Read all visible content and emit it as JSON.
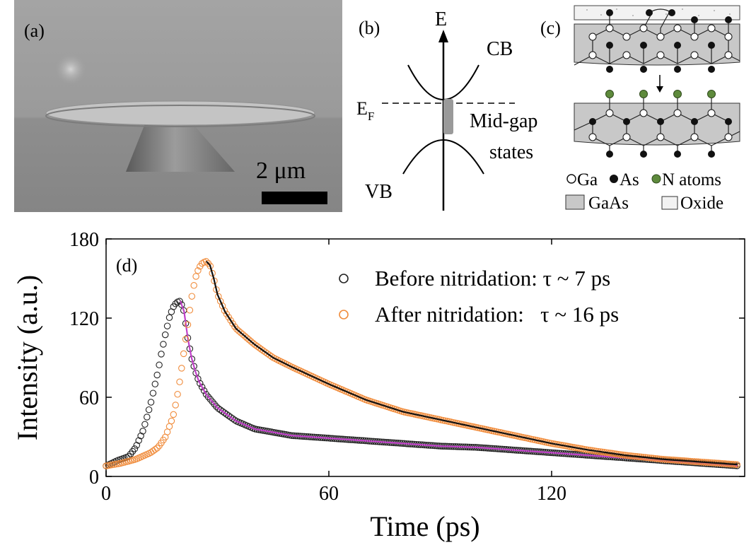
{
  "panel_a": {
    "label": "(a)",
    "scale_bar_label": "2 μm"
  },
  "panel_b": {
    "label": "(b)",
    "energy_axis": "E",
    "conduction_band": "CB",
    "valence_band": "VB",
    "fermi_level": "E",
    "fermi_subscript": "F",
    "midgap_line1": "Mid-gap",
    "midgap_line2": "states"
  },
  "panel_c": {
    "label": "(c)",
    "legend_ga": "Ga",
    "legend_as": "As",
    "legend_n": "N atoms",
    "legend_gaas": "GaAs",
    "legend_oxide": "Oxide",
    "colors": {
      "gaas_fill": "#c8c8c8",
      "oxide_fill": "#f2f2f2",
      "nitrogen": "#5e8a3c"
    }
  },
  "chart_data": {
    "type": "scatter",
    "panel_label": "(d)",
    "xlabel": "Time (ps)",
    "ylabel": "Intensity (a.u.)",
    "xlim": [
      0,
      172
    ],
    "ylim": [
      0,
      180
    ],
    "xticks": [
      "0",
      "60",
      "120"
    ],
    "yticks": [
      "0",
      "60",
      "120",
      "180"
    ],
    "legend_position": "top-right",
    "series": [
      {
        "name": "Before nitridation: τ ~ 7 ps",
        "color": "#222222",
        "fit_color": "#c040c8",
        "x": [
          0,
          3,
          6,
          8,
          10,
          12,
          14,
          15,
          16,
          17,
          18,
          19,
          20,
          21,
          22,
          23,
          24,
          25,
          27,
          30,
          35,
          40,
          50,
          60,
          70,
          80,
          90,
          100,
          110,
          120,
          130,
          140,
          150,
          160,
          170
        ],
        "y": [
          8,
          12,
          15,
          22,
          35,
          55,
          80,
          95,
          108,
          120,
          128,
          132,
          133,
          125,
          105,
          90,
          80,
          72,
          62,
          52,
          42,
          36,
          31,
          29,
          27,
          25,
          23,
          22,
          20,
          18,
          16,
          14,
          12,
          10,
          8
        ]
      },
      {
        "name": "After nitridation:   τ ~ 16 ps",
        "color": "#f08c3c",
        "fit_color": "#111111",
        "x": [
          0,
          4,
          8,
          12,
          14,
          16,
          18,
          19,
          20,
          21,
          22,
          23,
          24,
          25,
          26,
          27,
          28,
          29,
          30,
          32,
          35,
          40,
          45,
          50,
          60,
          70,
          80,
          90,
          100,
          110,
          120,
          130,
          140,
          150,
          160,
          170
        ],
        "y": [
          8,
          10,
          13,
          18,
          22,
          30,
          45,
          58,
          75,
          95,
          115,
          135,
          150,
          158,
          162,
          163,
          160,
          150,
          138,
          125,
          112,
          100,
          90,
          83,
          70,
          58,
          49,
          43,
          37,
          31,
          25,
          20,
          16,
          13,
          11,
          9
        ]
      }
    ]
  }
}
